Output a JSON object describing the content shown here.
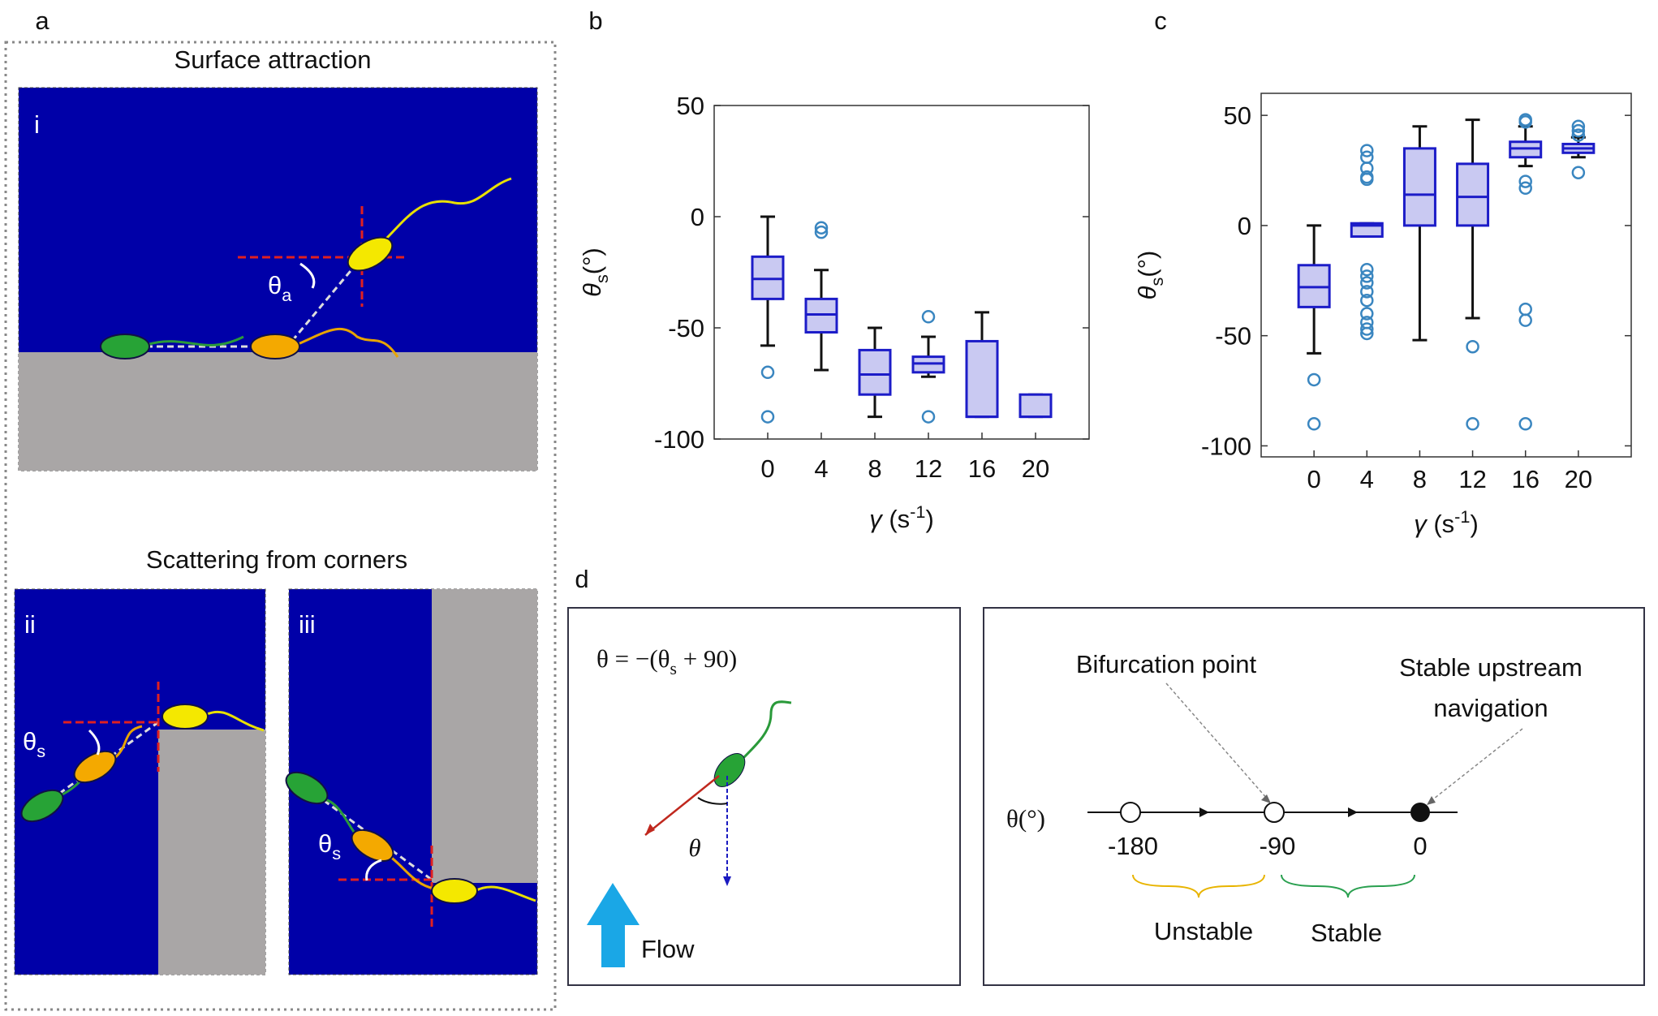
{
  "panel_labels": [
    "a",
    "b",
    "c",
    "d"
  ],
  "panel_a": {
    "title_top": "Surface attraction",
    "sub_i": "i",
    "theta_a": {
      "symbol": "θ",
      "sub": "a"
    },
    "title_bottom": "Scattering from corners",
    "sub_ii": "ii",
    "sub_iii": "iii",
    "theta_s_ii": {
      "symbol": "θ",
      "sub": "s"
    },
    "theta_s_iii": {
      "symbol": "θ",
      "sub": "s"
    }
  },
  "chart_data": [
    {
      "type": "box",
      "categories": [
        "0",
        "4",
        "8",
        "12",
        "16",
        "20"
      ],
      "ylim": [
        -100,
        50
      ],
      "yticks": [
        -100,
        -50,
        0,
        50
      ],
      "ylabel": {
        "symbol": "θ",
        "sub": "s",
        "unit": "(°)"
      },
      "xlabel": {
        "symbol": "γ",
        "unit": "(s",
        "sup": "-1",
        "close": ")"
      },
      "color": "#1c1cc8",
      "fill": "#c9c9f2",
      "outlier_color": "#3a86c0",
      "boxes": [
        {
          "min": -58,
          "q1": -37,
          "median": -28,
          "q3": -18,
          "max": 0,
          "outliers": [
            -70,
            -90
          ]
        },
        {
          "min": -69,
          "q1": -52,
          "median": -44,
          "q3": -37,
          "max": -24,
          "outliers": [
            -5,
            -7
          ]
        },
        {
          "min": -90,
          "q1": -80,
          "median": -71,
          "q3": -60,
          "max": -50,
          "outliers": []
        },
        {
          "min": -72,
          "q1": -70,
          "median": -66,
          "q3": -63,
          "max": -54,
          "outliers": [
            -45,
            -90
          ]
        },
        {
          "min": -90,
          "q1": -90,
          "median": -90,
          "q3": -56,
          "max": -43,
          "outliers": []
        },
        {
          "min": -90,
          "q1": -90,
          "median": -90,
          "q3": -80,
          "max": -80,
          "outliers": []
        }
      ]
    },
    {
      "type": "box",
      "categories": [
        "0",
        "4",
        "8",
        "12",
        "16",
        "20"
      ],
      "ylim": [
        -105,
        60
      ],
      "yticks": [
        -100,
        -50,
        0,
        50
      ],
      "ylabel": {
        "symbol": "θ",
        "sub": "s",
        "unit": "(°)"
      },
      "xlabel": {
        "symbol": "γ",
        "unit": "(s",
        "sup": "-1",
        "close": ")"
      },
      "color": "#1c1cc8",
      "fill": "#c9c9f2",
      "outlier_color": "#3a86c0",
      "boxes": [
        {
          "min": -58,
          "q1": -37,
          "median": -28,
          "q3": -18,
          "max": 0,
          "outliers": [
            -70,
            -90
          ]
        },
        {
          "min": -5,
          "q1": -5,
          "median": 0,
          "q3": 1,
          "max": 1,
          "outliers": [
            34,
            31,
            26,
            22,
            21,
            -20,
            -23,
            -26,
            -30,
            -34,
            -40,
            -44,
            -47,
            -49
          ]
        },
        {
          "min": -52,
          "q1": 0,
          "median": 14,
          "q3": 35,
          "max": 45,
          "outliers": []
        },
        {
          "min": -42,
          "q1": 0,
          "median": 13,
          "q3": 28,
          "max": 48,
          "outliers": [
            -55,
            -90
          ]
        },
        {
          "min": 27,
          "q1": 31,
          "median": 35,
          "q3": 38,
          "max": 45,
          "outliers": [
            48,
            47,
            20,
            17,
            -38,
            -43,
            -90
          ]
        },
        {
          "min": 31,
          "q1": 33,
          "median": 35,
          "q3": 37,
          "max": 40,
          "outliers": [
            45,
            43,
            41,
            24
          ]
        }
      ]
    }
  ],
  "panel_d": {
    "formula": {
      "pre": "θ = −(θ",
      "sub": "s",
      "post": " + 90)"
    },
    "theta": "θ",
    "flow": "Flow",
    "bifurcation": "Bifurcation point",
    "stable_nav": [
      "Stable upstream",
      "navigation"
    ],
    "axis_label": "θ(°)",
    "points": [
      "-180",
      "-90",
      "0"
    ],
    "unstable": "Unstable",
    "stable": "Stable"
  }
}
